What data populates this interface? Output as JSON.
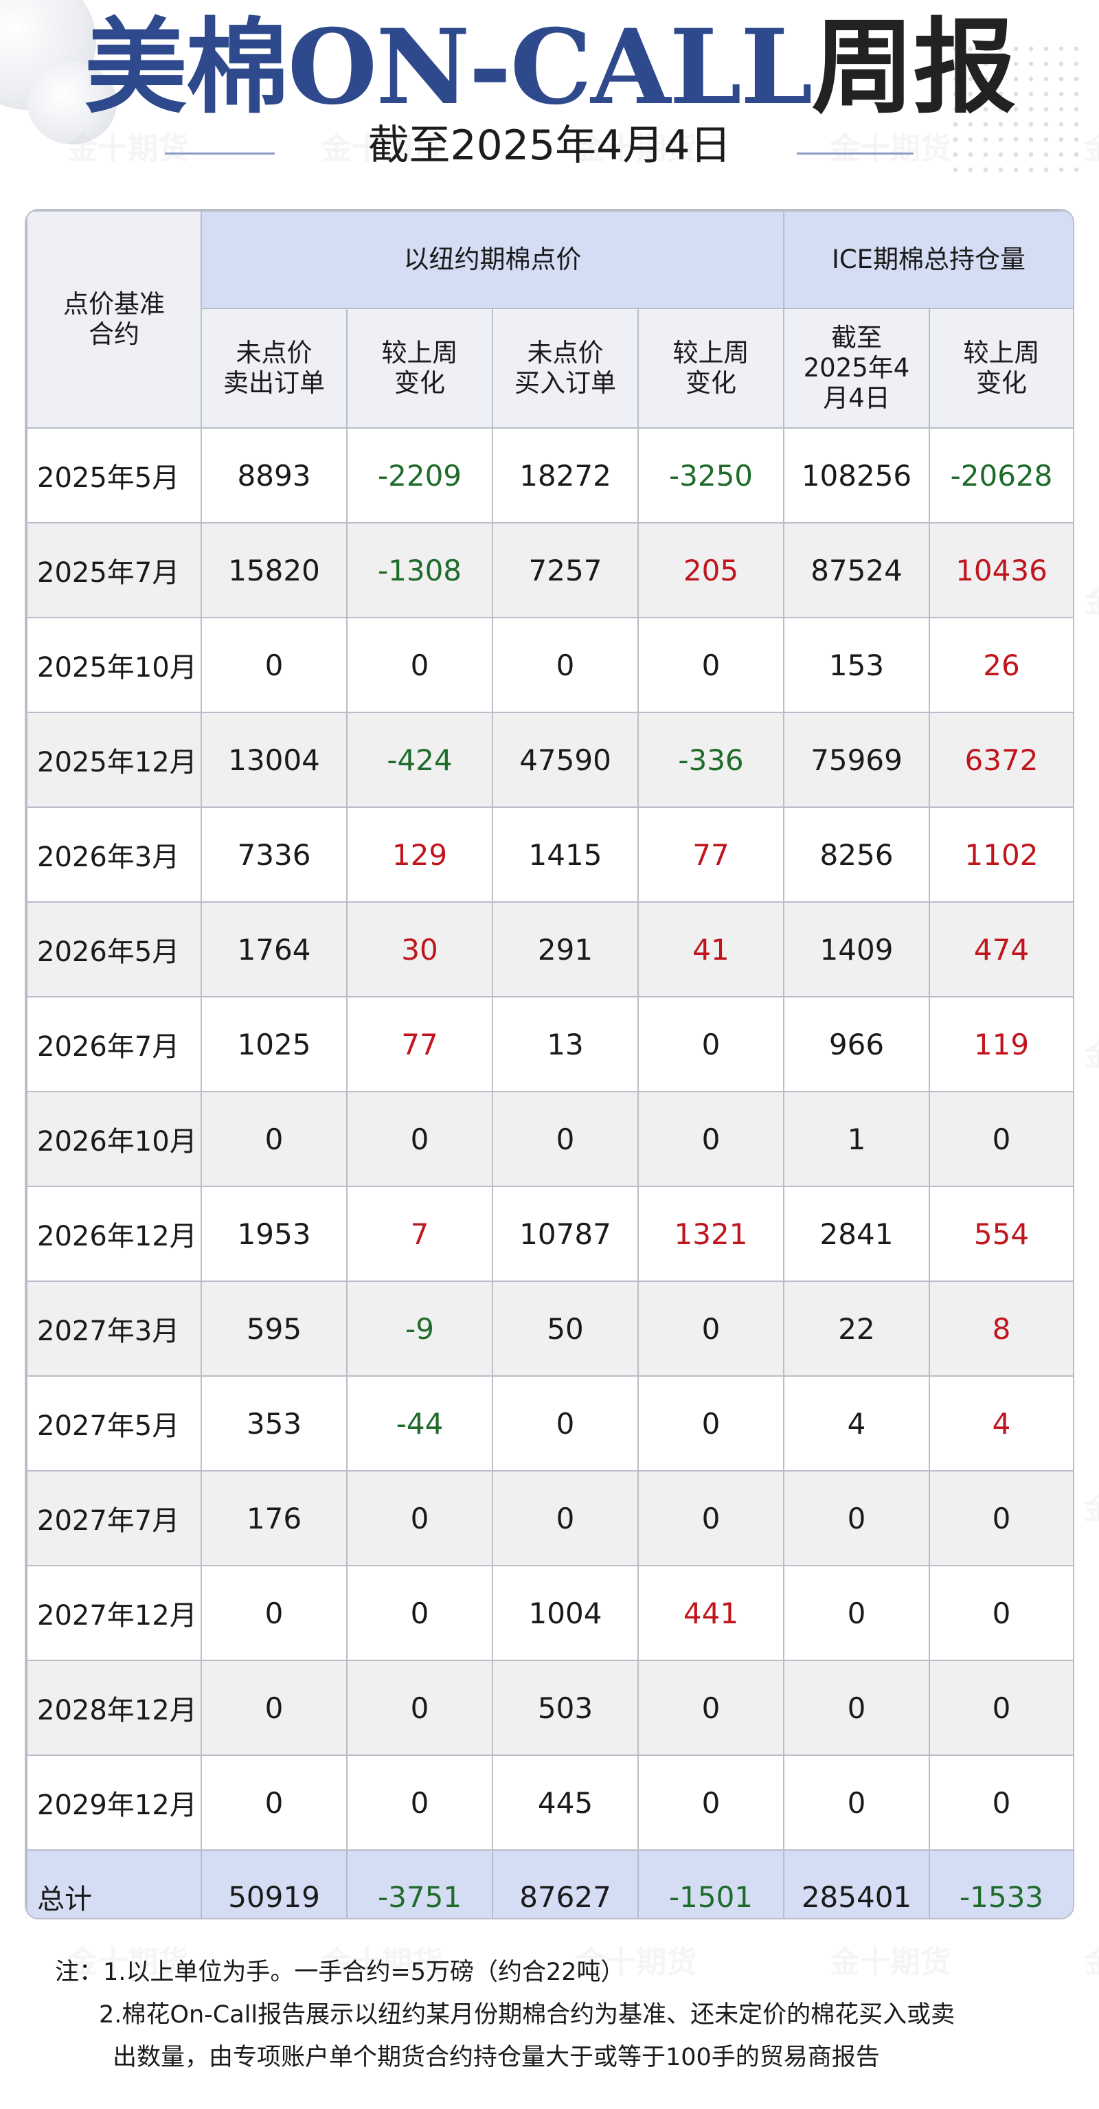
{
  "header": {
    "title_blue": "美棉ON-CALL",
    "title_dark": "周报",
    "subtitle": "截至2025年4月4日"
  },
  "watermark": "金十期货",
  "table": {
    "corner_header": "点价基准\n合约",
    "group_headers": [
      "以纽约期棉点价",
      "ICE期棉总持仓量"
    ],
    "sub_headers": [
      "未点价\n卖出订单",
      "较上周\n变化",
      "未点价\n买入订单",
      "较上周\n变化",
      "截至\n2025年4\n月4日",
      "较上周\n变化"
    ],
    "rows": [
      {
        "label": "2025年5月",
        "cells": [
          "8893",
          "-2209",
          "18272",
          "-3250",
          "108256",
          "-20628"
        ]
      },
      {
        "label": "2025年7月",
        "cells": [
          "15820",
          "-1308",
          "7257",
          "205",
          "87524",
          "10436"
        ]
      },
      {
        "label": "2025年10月",
        "cells": [
          "0",
          "0",
          "0",
          "0",
          "153",
          "26"
        ]
      },
      {
        "label": "2025年12月",
        "cells": [
          "13004",
          "-424",
          "47590",
          "-336",
          "75969",
          "6372"
        ]
      },
      {
        "label": "2026年3月",
        "cells": [
          "7336",
          "129",
          "1415",
          "77",
          "8256",
          "1102"
        ]
      },
      {
        "label": "2026年5月",
        "cells": [
          "1764",
          "30",
          "291",
          "41",
          "1409",
          "474"
        ]
      },
      {
        "label": "2026年7月",
        "cells": [
          "1025",
          "77",
          "13",
          "0",
          "966",
          "119"
        ]
      },
      {
        "label": "2026年10月",
        "cells": [
          "0",
          "0",
          "0",
          "0",
          "1",
          "0"
        ]
      },
      {
        "label": "2026年12月",
        "cells": [
          "1953",
          "7",
          "10787",
          "1321",
          "2841",
          "554"
        ]
      },
      {
        "label": "2027年3月",
        "cells": [
          "595",
          "-9",
          "50",
          "0",
          "22",
          "8"
        ]
      },
      {
        "label": "2027年5月",
        "cells": [
          "353",
          "-44",
          "0",
          "0",
          "4",
          "4"
        ]
      },
      {
        "label": "2027年7月",
        "cells": [
          "176",
          "0",
          "0",
          "0",
          "0",
          "0"
        ]
      },
      {
        "label": "2027年12月",
        "cells": [
          "0",
          "0",
          "1004",
          "441",
          "0",
          "0"
        ]
      },
      {
        "label": "2028年12月",
        "cells": [
          "0",
          "0",
          "503",
          "0",
          "0",
          "0"
        ]
      },
      {
        "label": "2029年12月",
        "cells": [
          "0",
          "0",
          "445",
          "0",
          "0",
          "0"
        ]
      }
    ],
    "total": {
      "label": "总计",
      "cells": [
        "50919",
        "-3751",
        "87627",
        "-1501",
        "285401",
        "-1533"
      ]
    }
  },
  "colors": {
    "positive_change": "#c0151c",
    "negative_change": "#1e6b2a",
    "header_blue": "#d5ddf4",
    "title_blue": "#2e4a8c"
  },
  "notes": [
    "注：1.以上单位为手。一手合约=5万磅（约合22吨）",
    "2.棉花On-Call报告展示以纽约某月份期棉合约为基准、还未定价的棉花买入或卖",
    "出数量，由专项账户单个期货合约持仓量大于或等于100手的贸易商报告"
  ]
}
